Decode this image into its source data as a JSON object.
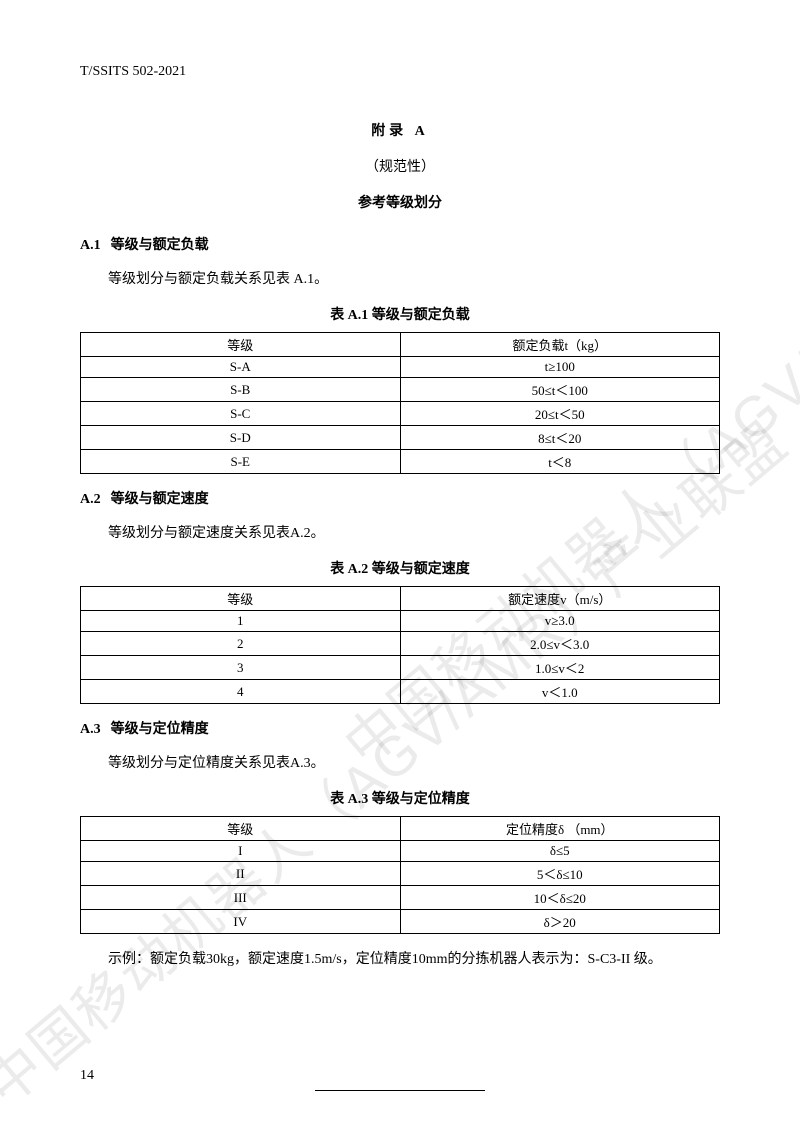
{
  "doc_code": "T/SSITS 502-2021",
  "appendix": {
    "label": "附录   A",
    "normative": "（规范性）",
    "title": "参考等级划分"
  },
  "sections": {
    "a1": {
      "num": "A.1",
      "title": "等级与额定负载",
      "body": "等级划分与额定负载关系见表 A.1。",
      "table_caption": "表 A.1 等级与额定负载"
    },
    "a2": {
      "num": "A.2",
      "title": "等级与额定速度",
      "body": "等级划分与额定速度关系见表A.2。",
      "table_caption": "表 A.2 等级与额定速度"
    },
    "a3": {
      "num": "A.3",
      "title": "等级与定位精度",
      "body": "等级划分与定位精度关系见表A.3。",
      "table_caption": "表 A.3 等级与定位精度"
    }
  },
  "tables": {
    "a1": {
      "headers": [
        "等级",
        "额定负载t（kg）"
      ],
      "rows": [
        [
          "S-A",
          "t≥100"
        ],
        [
          "S-B",
          "50≤t＜100"
        ],
        [
          "S-C",
          "20≤t＜50"
        ],
        [
          "S-D",
          "8≤t＜20"
        ],
        [
          "S-E",
          "t＜8"
        ]
      ]
    },
    "a2": {
      "headers": [
        "等级",
        "额定速度v（m/s）"
      ],
      "rows": [
        [
          "1",
          "v≥3.0"
        ],
        [
          "2",
          "2.0≤v＜3.0"
        ],
        [
          "3",
          "1.0≤v＜2"
        ],
        [
          "4",
          "v＜1.0"
        ]
      ]
    },
    "a3": {
      "headers": [
        "等级",
        "定位精度δ （mm）"
      ],
      "rows": [
        [
          "I",
          "δ≤5"
        ],
        [
          "II",
          "5＜δ≤10"
        ],
        [
          "III",
          "10＜δ≤20"
        ],
        [
          "IV",
          "δ＞20"
        ]
      ]
    }
  },
  "example": "示例：额定负载30kg，额定速度1.5m/s，定位精度10mm的分拣机器人表示为：S-C3-II  级。",
  "page_number": "14",
  "watermark_text": "中国移动机器人（AGV/AMR）产业联盟",
  "colors": {
    "text": "#000000",
    "background": "#ffffff",
    "watermark": "rgba(0,0,0,0.08)",
    "border": "#000000"
  },
  "typography": {
    "base_font": "SimSun",
    "base_size_pt": 10.5,
    "heading_weight": "bold"
  }
}
